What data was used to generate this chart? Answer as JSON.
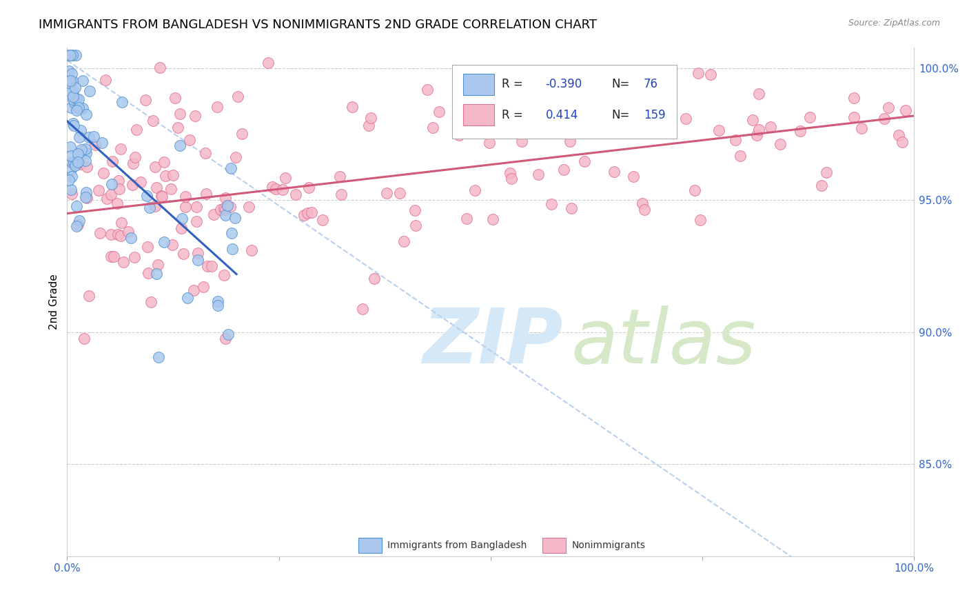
{
  "title": "IMMIGRANTS FROM BANGLADESH VS NONIMMIGRANTS 2ND GRADE CORRELATION CHART",
  "source": "Source: ZipAtlas.com",
  "ylabel": "2nd Grade",
  "xlim": [
    0.0,
    1.0
  ],
  "ylim": [
    0.815,
    1.008
  ],
  "yticks": [
    0.85,
    0.9,
    0.95,
    1.0
  ],
  "ytick_labels": [
    "85.0%",
    "90.0%",
    "95.0%",
    "100.0%"
  ],
  "blue_R": "-0.390",
  "blue_N": 76,
  "pink_R": "0.414",
  "pink_N": 159,
  "blue_color": "#aac8ee",
  "pink_color": "#f5b8c8",
  "blue_edge_color": "#5090d0",
  "pink_edge_color": "#e07090",
  "blue_line_color": "#3060c0",
  "pink_line_color": "#d05878",
  "dashed_line_color": "#b8d0ee",
  "title_fontsize": 13,
  "axis_label_fontsize": 11,
  "tick_fontsize": 11,
  "blue_trendline_x": [
    0.0,
    0.2
  ],
  "blue_trendline_y": [
    0.98,
    0.922
  ],
  "pink_trendline_x": [
    0.0,
    1.0
  ],
  "pink_trendline_y": [
    0.945,
    0.982
  ],
  "dashed_line_x": [
    0.0,
    1.0
  ],
  "dashed_line_y": [
    1.003,
    0.783
  ],
  "seed": 42
}
